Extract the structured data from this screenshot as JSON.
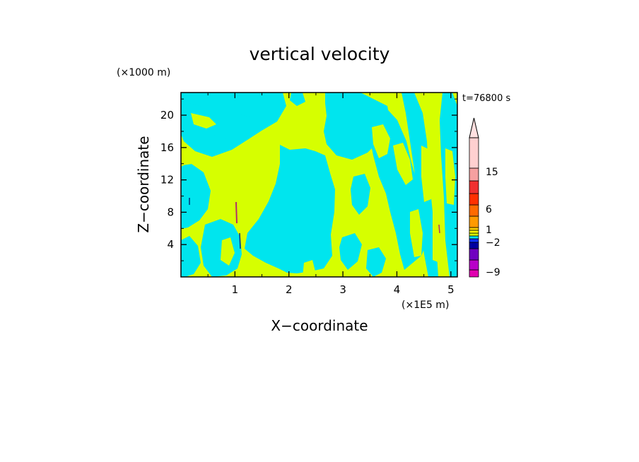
{
  "colors": {
    "positive_weak": "#d6ff00",
    "negative_weak": "#00e5ee",
    "frame": "#000000"
  },
  "time_label": "t=76800 s",
  "chart_data": {
    "type": "heatmap",
    "title": "vertical velocity",
    "xlabel": "X−coordinate",
    "ylabel": "Z−coordinate",
    "x_unit": "(×1E5 m)",
    "y_unit": "(×1000 m)",
    "xlim": [
      0,
      5.12
    ],
    "ylim": [
      0,
      22.8
    ],
    "x_ticks": [
      1,
      2,
      3,
      4,
      5
    ],
    "x_tick_labels": [
      "1",
      "2",
      "3",
      "4",
      "5"
    ],
    "y_ticks": [
      4,
      8,
      12,
      16,
      20
    ],
    "y_tick_labels": [
      "4",
      "8",
      "12",
      "16",
      "20"
    ],
    "grid": false,
    "colorbar": {
      "position": "right",
      "extend": "max",
      "colors": [
        "#e000b0",
        "#b800c8",
        "#7000c0",
        "#0000a0",
        "#1030ff",
        "#00e5ee",
        "#d6ff00",
        "#ffff00",
        "#ffd000",
        "#ff9a00",
        "#ff6a00",
        "#ff3000",
        "#f03030",
        "#f5a0a0",
        "#ffd0d0"
      ],
      "tick_levels": [
        -9,
        -2,
        1,
        6,
        15
      ],
      "tick_labels": [
        "−9",
        "−2",
        "1",
        "6",
        "15"
      ]
    },
    "dominant_levels": [
      "-1 to 0",
      "0 to 1"
    ]
  }
}
